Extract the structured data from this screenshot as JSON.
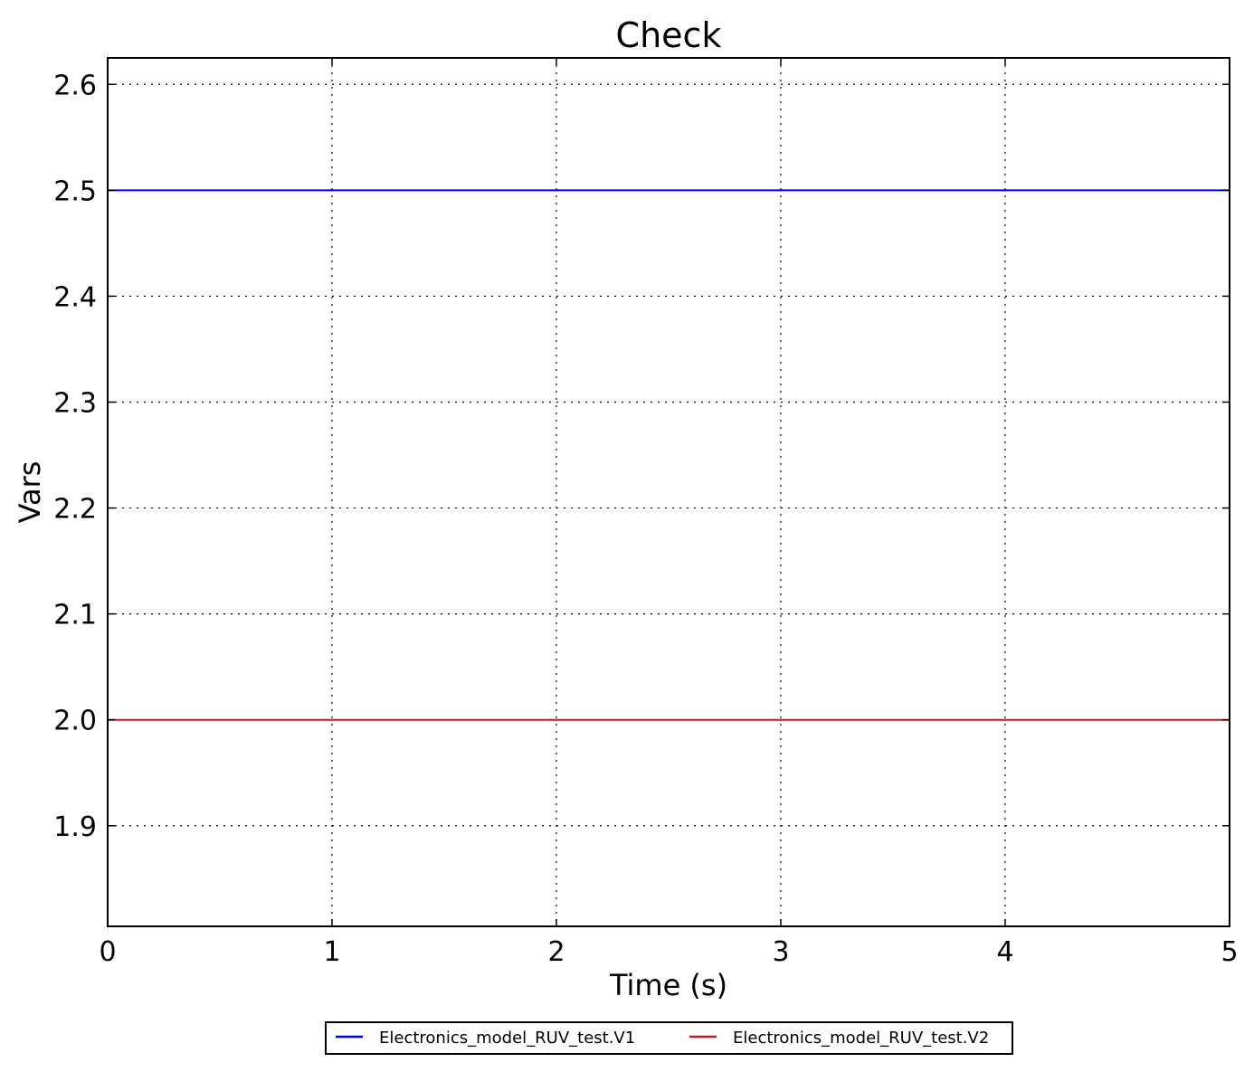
{
  "chart_data": {
    "type": "line",
    "title": "Check",
    "xlabel": "Time (s)",
    "ylabel": "Vars",
    "xlim": [
      0,
      5
    ],
    "ylim": [
      1.805,
      2.625
    ],
    "xticks": [
      0,
      1,
      2,
      3,
      4,
      5
    ],
    "xtick_labels": [
      "0",
      "1",
      "2",
      "3",
      "4",
      "5"
    ],
    "yticks": [
      1.9,
      2.0,
      2.1,
      2.2,
      2.3,
      2.4,
      2.5,
      2.6
    ],
    "ytick_labels": [
      "1.9",
      "2.0",
      "2.1",
      "2.2",
      "2.3",
      "2.4",
      "2.5",
      "2.6"
    ],
    "grid": true,
    "legend_placement": "bottom-center (below axes)",
    "series": [
      {
        "name": "Electronics_model_RUV_test.V1",
        "color": "#0000ff",
        "x": [
          0,
          5
        ],
        "y": [
          2.5,
          2.5
        ]
      },
      {
        "name": "Electronics_model_RUV_test.V2",
        "color": "#b22222",
        "x": [
          0,
          5
        ],
        "y": [
          2.0,
          2.0
        ]
      }
    ]
  }
}
